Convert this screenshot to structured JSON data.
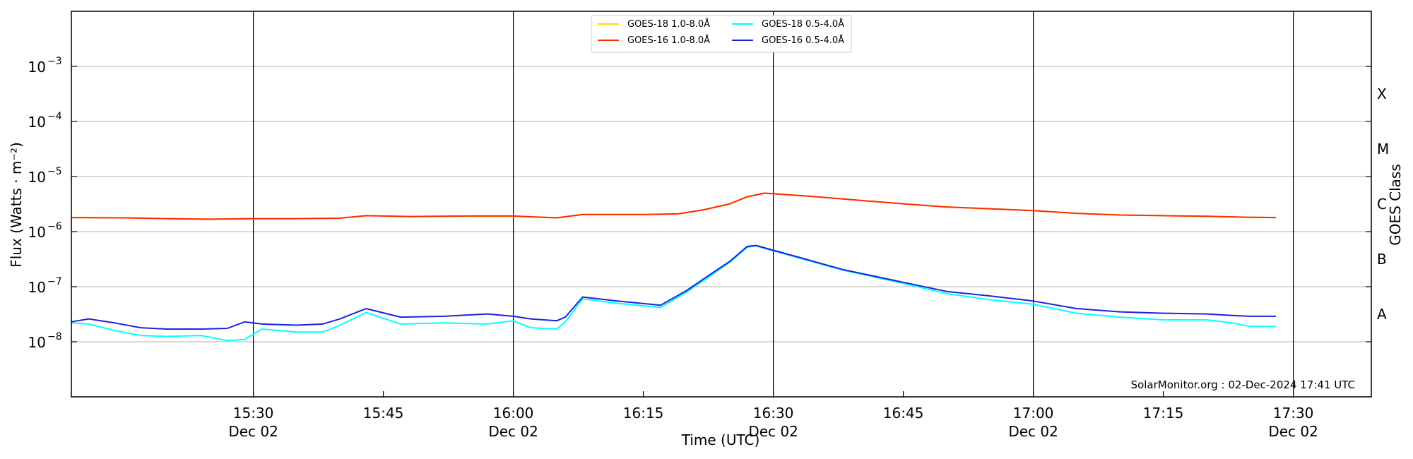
{
  "chart_data": {
    "type": "line",
    "title": "",
    "xlabel": "Time (UTC)",
    "ylabel": "Flux (Watts · m⁻²)",
    "y2label": "GOES Class",
    "yscale": "log",
    "ylim": [
      1e-09,
      0.01
    ],
    "xlim": [
      "15:09",
      "17:39"
    ],
    "x_ticks": [
      {
        "x": "15:30",
        "label": "15:30",
        "sublabel": "Dec 02"
      },
      {
        "x": "15:45",
        "label": "15:45",
        "sublabel": ""
      },
      {
        "x": "16:00",
        "label": "16:00",
        "sublabel": "Dec 02"
      },
      {
        "x": "16:15",
        "label": "16:15",
        "sublabel": ""
      },
      {
        "x": "16:30",
        "label": "16:30",
        "sublabel": "Dec 02"
      },
      {
        "x": "16:45",
        "label": "16:45",
        "sublabel": ""
      },
      {
        "x": "17:00",
        "label": "17:00",
        "sublabel": "Dec 02"
      },
      {
        "x": "17:15",
        "label": "17:15",
        "sublabel": ""
      },
      {
        "x": "17:30",
        "label": "17:30",
        "sublabel": "Dec 02"
      }
    ],
    "day_lines": [
      "15:30",
      "16:00",
      "16:30",
      "17:00",
      "17:30"
    ],
    "y_ticks": [
      {
        "value": 1e-08,
        "base": "10",
        "exp": "−8"
      },
      {
        "value": 1e-07,
        "base": "10",
        "exp": "−7"
      },
      {
        "value": 1e-06,
        "base": "10",
        "exp": "−6"
      },
      {
        "value": 1e-05,
        "base": "10",
        "exp": "−5"
      },
      {
        "value": 0.0001,
        "base": "10",
        "exp": "−4"
      },
      {
        "value": 0.001,
        "base": "10",
        "exp": "−3"
      }
    ],
    "goes_classes": [
      {
        "label": "A",
        "value": 3.16e-08
      },
      {
        "label": "B",
        "value": 3.16e-07
      },
      {
        "label": "C",
        "value": 3.16e-06
      },
      {
        "label": "M",
        "value": 3.16e-05
      },
      {
        "label": "X",
        "value": 0.000316
      }
    ],
    "grid": true,
    "legend_position": "top-center",
    "credit": "SolarMonitor.org : 02-Dec-2024 17:41 UTC",
    "series": [
      {
        "name": "GOES-18 1.0-8.0Å",
        "color": "#FFD700",
        "x": [
          "15:09",
          "15:15",
          "15:20",
          "15:25",
          "15:30",
          "15:35",
          "15:40",
          "15:43",
          "15:48",
          "15:55",
          "16:00",
          "16:05",
          "16:08",
          "16:15",
          "16:19",
          "16:22",
          "16:25",
          "16:27",
          "16:29",
          "16:35",
          "16:40",
          "16:45",
          "16:50",
          "16:55",
          "17:00",
          "17:05",
          "17:10",
          "17:15",
          "17:20",
          "17:25",
          "17:28"
        ],
        "values": [
          1.8e-06,
          1.78e-06,
          1.72e-06,
          1.68e-06,
          1.72e-06,
          1.72e-06,
          1.75e-06,
          1.95e-06,
          1.88e-06,
          1.92e-06,
          1.92e-06,
          1.78e-06,
          2.05e-06,
          2.05e-06,
          2.1e-06,
          2.5e-06,
          3.2e-06,
          4.3e-06,
          5e-06,
          4.3e-06,
          3.7e-06,
          3.2e-06,
          2.8e-06,
          2.6e-06,
          2.4e-06,
          2.15e-06,
          2e-06,
          1.95e-06,
          1.9e-06,
          1.82e-06,
          1.8e-06
        ]
      },
      {
        "name": "GOES-16 1.0-8.0Å",
        "color": "#FF2A00",
        "x": [
          "15:09",
          "15:15",
          "15:20",
          "15:25",
          "15:30",
          "15:35",
          "15:40",
          "15:43",
          "15:48",
          "15:55",
          "16:00",
          "16:05",
          "16:08",
          "16:15",
          "16:19",
          "16:22",
          "16:25",
          "16:27",
          "16:29",
          "16:35",
          "16:40",
          "16:45",
          "16:50",
          "16:55",
          "17:00",
          "17:05",
          "17:10",
          "17:15",
          "17:20",
          "17:25",
          "17:28"
        ],
        "values": [
          1.8e-06,
          1.78e-06,
          1.72e-06,
          1.68e-06,
          1.72e-06,
          1.72e-06,
          1.75e-06,
          1.95e-06,
          1.88e-06,
          1.92e-06,
          1.92e-06,
          1.78e-06,
          2.05e-06,
          2.05e-06,
          2.1e-06,
          2.5e-06,
          3.2e-06,
          4.3e-06,
          5e-06,
          4.3e-06,
          3.7e-06,
          3.2e-06,
          2.8e-06,
          2.6e-06,
          2.4e-06,
          2.15e-06,
          2e-06,
          1.95e-06,
          1.9e-06,
          1.82e-06,
          1.8e-06
        ]
      },
      {
        "name": "GOES-18 0.5-4.0Å",
        "color": "#00FFFF",
        "x": [
          "15:09",
          "15:11",
          "15:14",
          "15:17",
          "15:20",
          "15:24",
          "15:27",
          "15:29",
          "15:31",
          "15:35",
          "15:38",
          "15:40",
          "15:43",
          "15:47",
          "15:52",
          "15:57",
          "16:00",
          "16:02",
          "16:05",
          "16:06",
          "16:08",
          "16:12",
          "16:17",
          "16:20",
          "16:22",
          "16:25",
          "16:27",
          "16:28",
          "16:33",
          "16:38",
          "16:45",
          "16:50",
          "16:55",
          "17:00",
          "17:05",
          "17:10",
          "17:15",
          "17:20",
          "17:23",
          "17:25",
          "17:28"
        ],
        "values": [
          2.2e-08,
          2.1e-08,
          1.6e-08,
          1.3e-08,
          1.25e-08,
          1.3e-08,
          1.05e-08,
          1.1e-08,
          1.7e-08,
          1.5e-08,
          1.5e-08,
          2e-08,
          3.4e-08,
          2.1e-08,
          2.2e-08,
          2.1e-08,
          2.4e-08,
          1.8e-08,
          1.7e-08,
          2.3e-08,
          6e-08,
          5e-08,
          4.2e-08,
          8e-08,
          1.3e-07,
          2.8e-07,
          5.2e-07,
          5.5e-07,
          3.3e-07,
          2e-07,
          1.15e-07,
          7.5e-08,
          5.8e-08,
          4.8e-08,
          3.3e-08,
          2.8e-08,
          2.5e-08,
          2.5e-08,
          2.2e-08,
          1.9e-08,
          1.9e-08
        ]
      },
      {
        "name": "GOES-16 0.5-4.0Å",
        "color": "#2020E0",
        "x": [
          "15:09",
          "15:11",
          "15:14",
          "15:17",
          "15:20",
          "15:24",
          "15:27",
          "15:29",
          "15:31",
          "15:35",
          "15:38",
          "15:40",
          "15:43",
          "15:47",
          "15:52",
          "15:57",
          "16:00",
          "16:02",
          "16:05",
          "16:06",
          "16:08",
          "16:12",
          "16:17",
          "16:20",
          "16:22",
          "16:25",
          "16:27",
          "16:28",
          "16:33",
          "16:38",
          "16:45",
          "16:50",
          "16:55",
          "17:00",
          "17:05",
          "17:10",
          "17:15",
          "17:20",
          "17:23",
          "17:25",
          "17:28"
        ],
        "values": [
          2.3e-08,
          2.6e-08,
          2.2e-08,
          1.8e-08,
          1.7e-08,
          1.7e-08,
          1.75e-08,
          2.3e-08,
          2.1e-08,
          2e-08,
          2.1e-08,
          2.6e-08,
          4e-08,
          2.8e-08,
          2.9e-08,
          3.2e-08,
          2.9e-08,
          2.6e-08,
          2.4e-08,
          2.8e-08,
          6.5e-08,
          5.5e-08,
          4.6e-08,
          8.5e-08,
          1.4e-07,
          2.9e-07,
          5.4e-07,
          5.6e-07,
          3.4e-07,
          2.05e-07,
          1.2e-07,
          8.2e-08,
          6.8e-08,
          5.5e-08,
          4e-08,
          3.5e-08,
          3.3e-08,
          3.2e-08,
          3e-08,
          2.9e-08,
          2.9e-08
        ]
      }
    ]
  }
}
